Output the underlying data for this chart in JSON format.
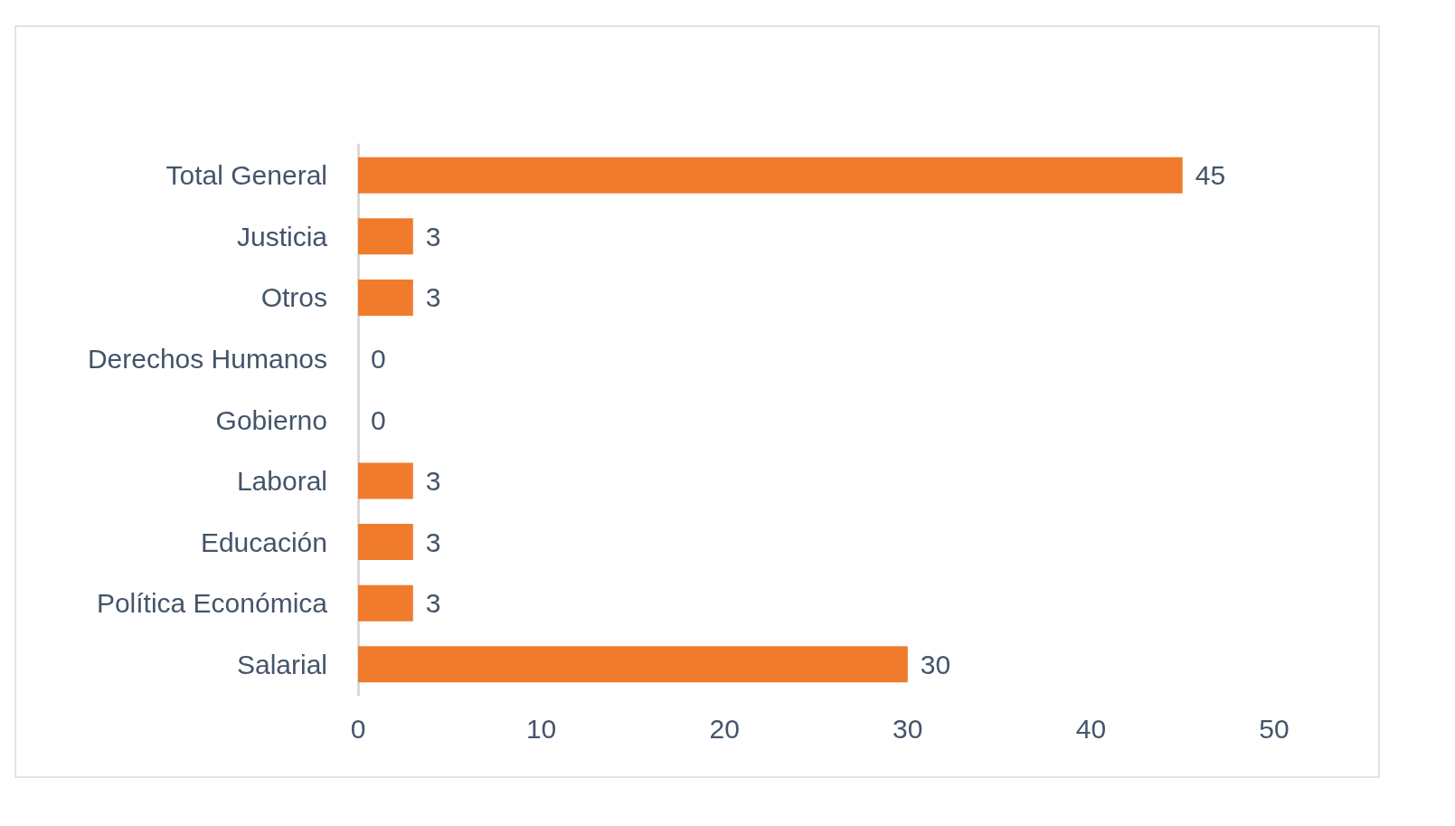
{
  "chart_data": {
    "type": "bar",
    "orientation": "horizontal",
    "categories": [
      "Total General",
      "Justicia",
      "Otros",
      "Derechos Humanos",
      "Gobierno",
      "Laboral",
      "Educación",
      "Política Económica",
      "Salarial"
    ],
    "values": [
      45,
      3,
      3,
      0,
      0,
      3,
      3,
      3,
      30
    ],
    "color": "#f07b2c",
    "xlim": [
      0,
      50
    ],
    "xticks": [
      0,
      10,
      20,
      30,
      40,
      50
    ],
    "grid": false,
    "data_labels": true
  }
}
